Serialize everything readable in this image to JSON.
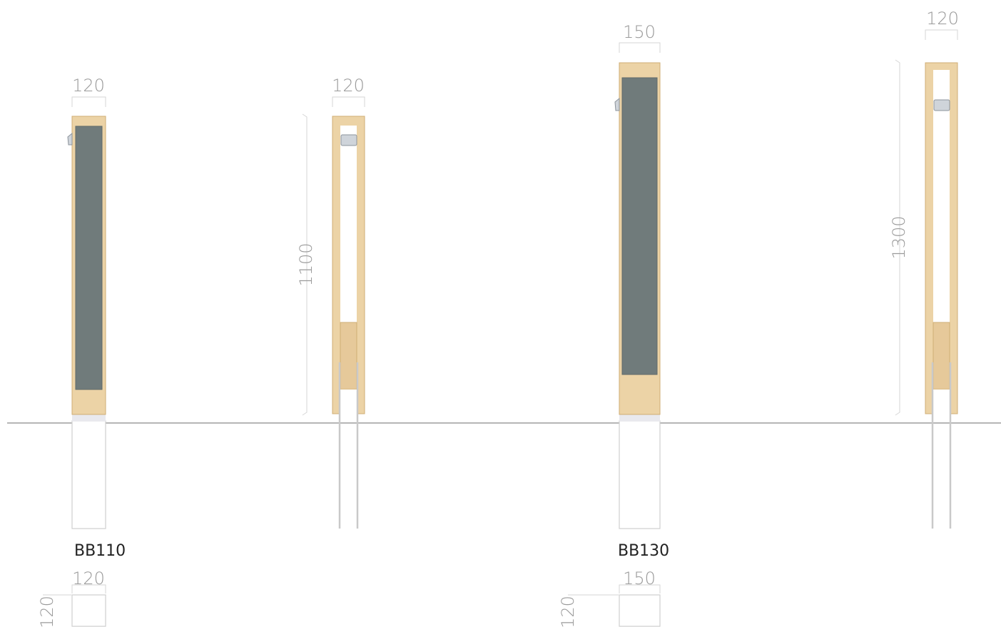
{
  "units": [
    {
      "model": "BB110",
      "front": {
        "width_label": "120"
      },
      "side": {
        "width_label": "120",
        "height_label": "1100"
      },
      "top": {
        "width_label": "120",
        "depth_label": "120"
      }
    },
    {
      "model": "BB130",
      "front": {
        "width_label": "150"
      },
      "side": {
        "width_label": "120",
        "height_label": "1300"
      },
      "top": {
        "width_label": "150",
        "depth_label": "120"
      }
    }
  ],
  "colors": {
    "wood": "#ecd3a6",
    "panel": "#707b7b",
    "dimension": "#9a9a9a",
    "ground": "#8a8a8a"
  }
}
